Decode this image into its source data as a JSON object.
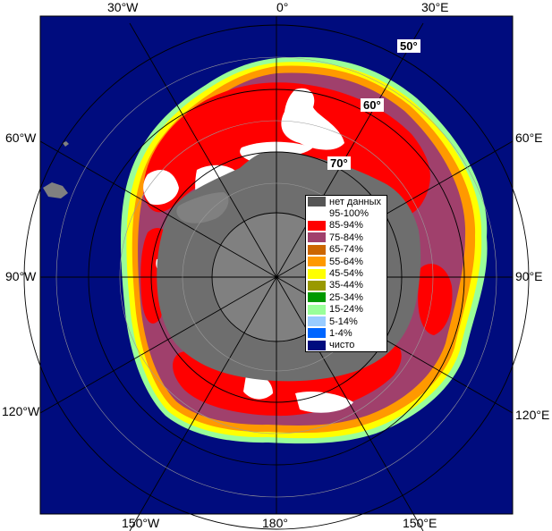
{
  "map": {
    "lon_labels": {
      "w30": "30°W",
      "zero": "0°",
      "e30": "30°E",
      "w60": "60°W",
      "e60": "60°E",
      "w90": "90°W",
      "e90": "90°E",
      "w120": "120°W",
      "e120": "120°E",
      "w150": "150°W",
      "d180": "180°",
      "e150": "150°E"
    },
    "lat_labels": {
      "lat50": "50°",
      "lat60": "60°",
      "lat70": "70°"
    },
    "colors": {
      "ocean": "#000c7e",
      "land": "#808080",
      "landmass_dark": "#5a5a5a",
      "ice_95": "#ffffff",
      "ice_85": "#ff0000",
      "ice_75": "#a0406c",
      "ice_65": "#cc6600",
      "ice_55": "#ff9900",
      "ice_45": "#ffff00",
      "ice_35": "#999900",
      "ice_25": "#009900",
      "ice_15": "#99ff99",
      "ice_5": "#99ccff",
      "ice_1": "#0066ff"
    }
  },
  "legend": {
    "items": [
      {
        "label": "нет данных",
        "color": "#555555"
      },
      {
        "label": "95-100%",
        "color": "#ffffff"
      },
      {
        "label": "85-94%",
        "color": "#ff0000"
      },
      {
        "label": "75-84%",
        "color": "#a0406c"
      },
      {
        "label": "65-74%",
        "color": "#cc6600"
      },
      {
        "label": "55-64%",
        "color": "#ff9900"
      },
      {
        "label": "45-54%",
        "color": "#ffff00"
      },
      {
        "label": "35-44%",
        "color": "#999900"
      },
      {
        "label": "25-34%",
        "color": "#009900"
      },
      {
        "label": "15-24%",
        "color": "#99ff99"
      },
      {
        "label": "5-14%",
        "color": "#99ccff"
      },
      {
        "label": "1-4%",
        "color": "#0066ff"
      },
      {
        "label": "чисто",
        "color": "#000c7e"
      }
    ]
  }
}
